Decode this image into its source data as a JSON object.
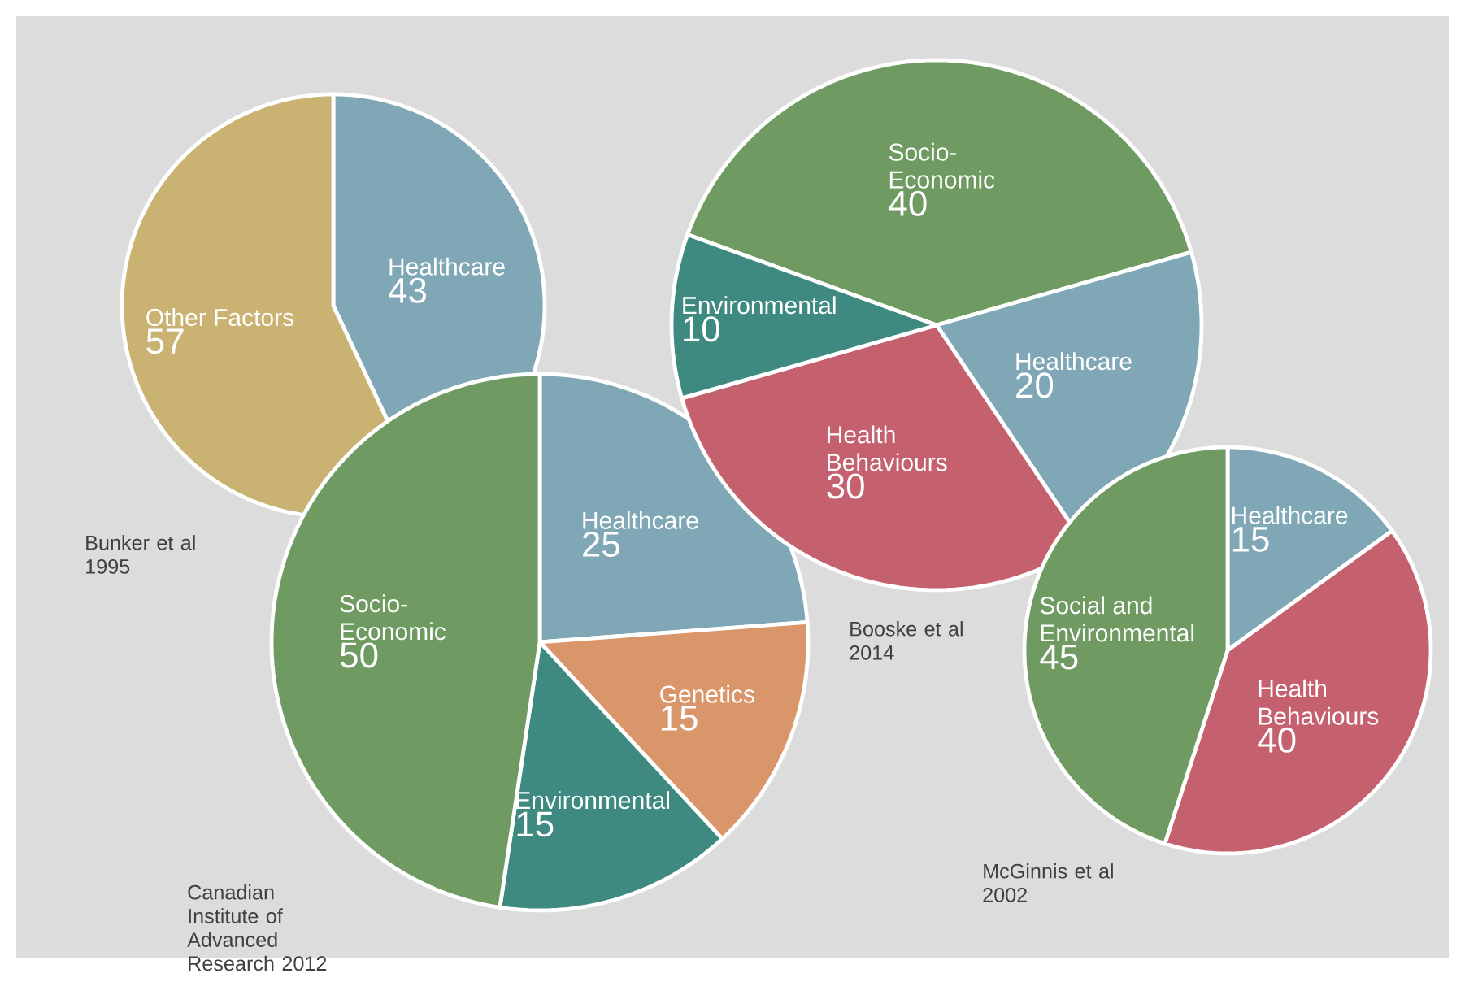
{
  "chart_data": [
    {
      "type": "pie",
      "categories": [
        "Healthcare",
        "Other Factors"
      ],
      "values": [
        43,
        57
      ],
      "colors": [
        "#80a7b5",
        "#c9b272"
      ],
      "data_labels": true,
      "annotations": [
        "Bunker et al 1995"
      ]
    },
    {
      "type": "pie",
      "categories": [
        "Healthcare",
        "Genetics",
        "Environmental",
        "Socio-Economic"
      ],
      "values": [
        25,
        15,
        15,
        50
      ],
      "colors": [
        "#80a7b5",
        "#d9966b",
        "#3e8a81",
        "#6f9b62"
      ],
      "data_labels": true,
      "annotations": [
        "Canadian Institute of Advanced Research 2012"
      ]
    },
    {
      "type": "pie",
      "categories": [
        "Socio-Economic",
        "Healthcare",
        "Health Behaviours",
        "Environmental"
      ],
      "values": [
        40,
        20,
        30,
        10
      ],
      "colors": [
        "#6f9b62",
        "#80a7b5",
        "#c5616f",
        "#3e8a81"
      ],
      "data_labels": true,
      "annotations": [
        "Booske et al 2014"
      ]
    },
    {
      "type": "pie",
      "categories": [
        "Healthcare",
        "Health Behaviours",
        "Social and Environmental"
      ],
      "values": [
        15,
        40,
        45
      ],
      "colors": [
        "#80a7b5",
        "#c5616f",
        "#6f9b62"
      ],
      "data_labels": true,
      "annotations": [
        "McGinnis et al 2002"
      ]
    }
  ]
}
